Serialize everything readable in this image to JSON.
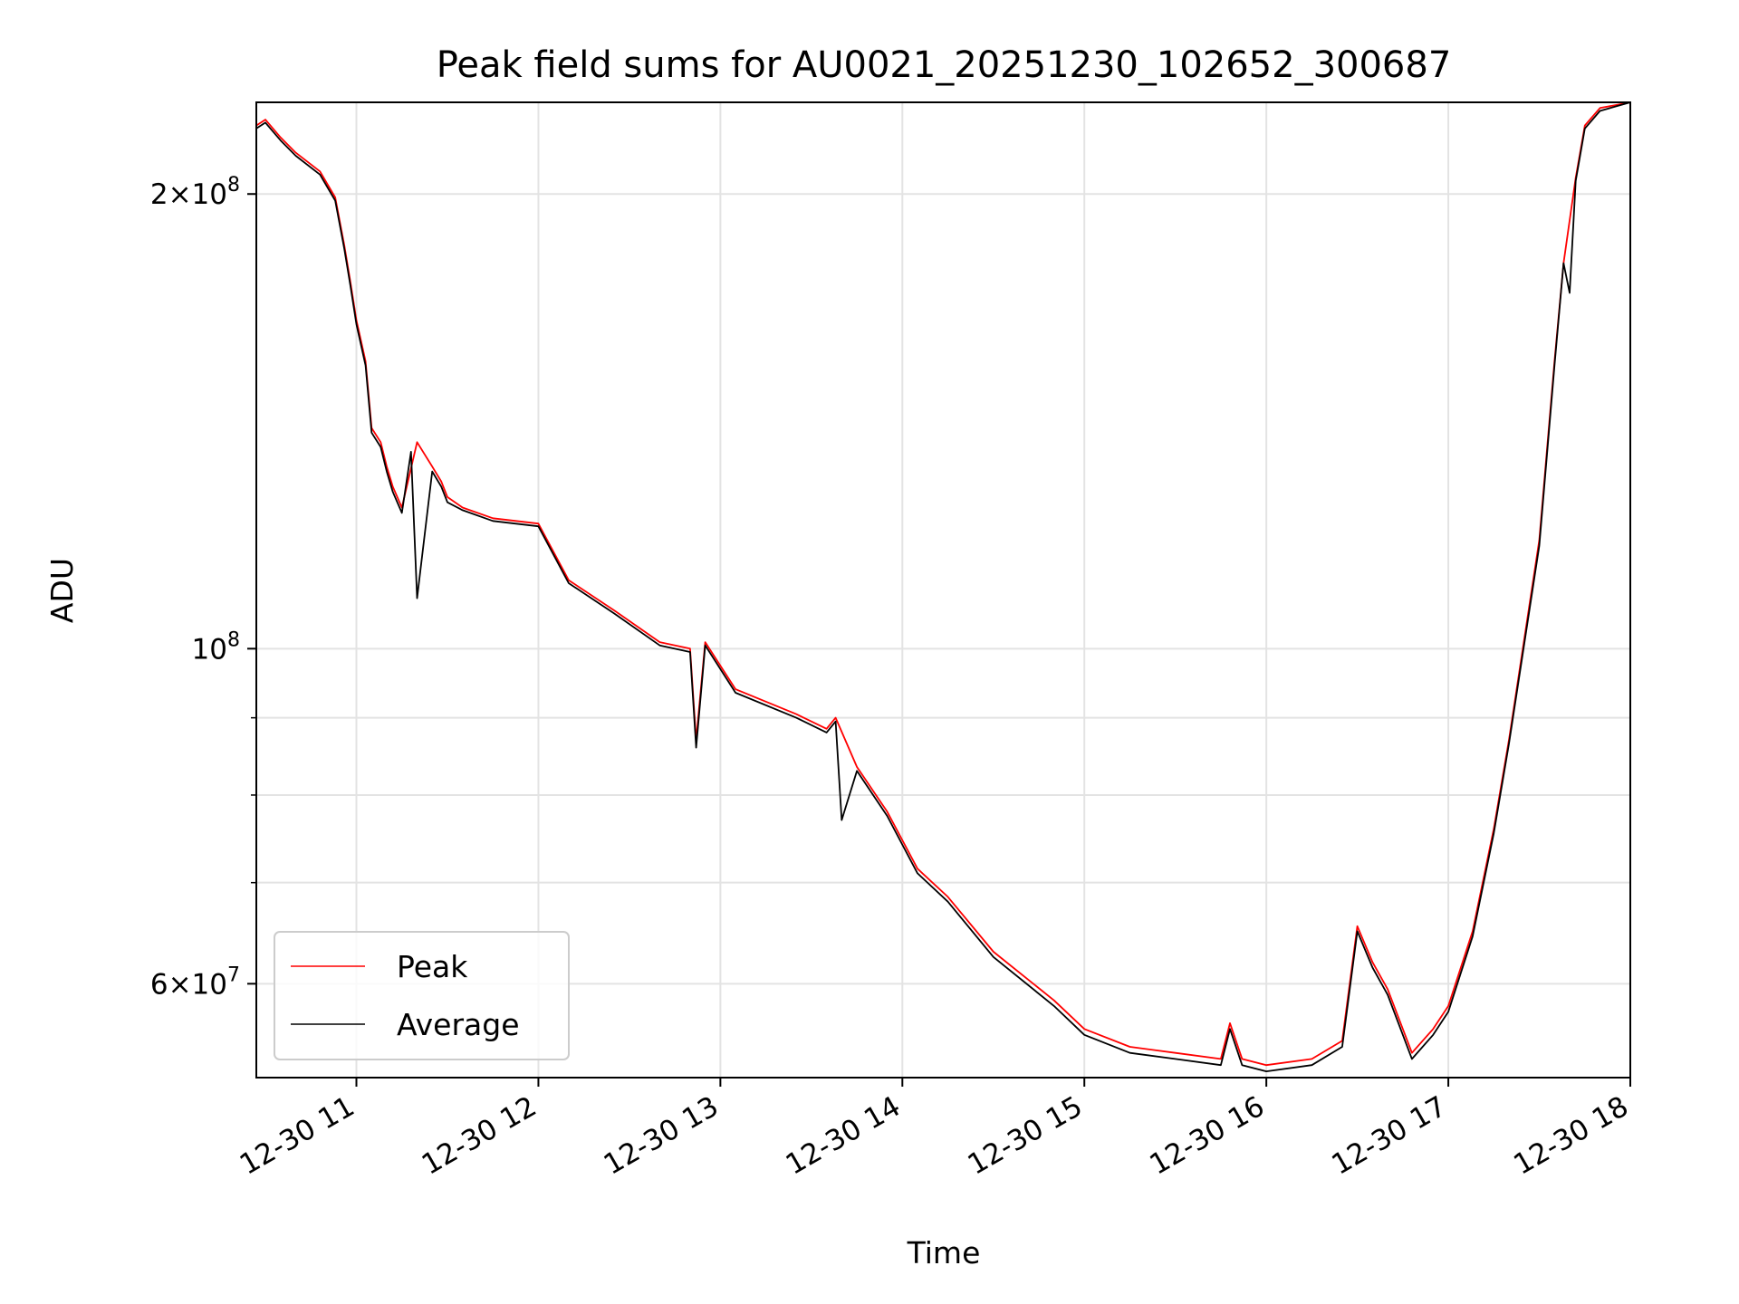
{
  "chart_data": {
    "type": "line",
    "title": "Peak field sums for AU0021_20251230_102652_300687",
    "xlabel": "Time",
    "ylabel": "ADU",
    "yscale": "log",
    "grid": true,
    "legend_position": "lower-left",
    "xlim": [
      "2025-12-30 10:27",
      "2025-12-30 18:00"
    ],
    "ylim": [
      52000000,
      230000000
    ],
    "x_ticks": [
      "12-30 11",
      "12-30 12",
      "12-30 13",
      "12-30 14",
      "12-30 15",
      "12-30 16",
      "12-30 17",
      "12-30 18"
    ],
    "y_ticks": [
      {
        "value": 200000000,
        "mantissa": "2",
        "exponent": "8"
      },
      {
        "value": 100000000,
        "mantissa": "",
        "exponent": "8"
      },
      {
        "value": 60000000,
        "mantissa": "6",
        "exponent": "7"
      }
    ],
    "y_minor_ticks": [
      70000000,
      80000000,
      90000000
    ],
    "series": [
      {
        "name": "Peak",
        "color": "#ff0000",
        "x": [
          "2025-12-30 10:27",
          "2025-12-30 10:30",
          "2025-12-30 10:35",
          "2025-12-30 10:40",
          "2025-12-30 10:48",
          "2025-12-30 10:53",
          "2025-12-30 10:56",
          "2025-12-30 10:58",
          "2025-12-30 11:00",
          "2025-12-30 11:03",
          "2025-12-30 11:05",
          "2025-12-30 11:08",
          "2025-12-30 11:10",
          "2025-12-30 11:12",
          "2025-12-30 11:15",
          "2025-12-30 11:20",
          "2025-12-30 11:25",
          "2025-12-30 11:28",
          "2025-12-30 11:30",
          "2025-12-30 11:35",
          "2025-12-30 11:45",
          "2025-12-30 12:00",
          "2025-12-30 12:10",
          "2025-12-30 12:25",
          "2025-12-30 12:40",
          "2025-12-30 12:50",
          "2025-12-30 12:52",
          "2025-12-30 12:55",
          "2025-12-30 13:05",
          "2025-12-30 13:25",
          "2025-12-30 13:35",
          "2025-12-30 13:38",
          "2025-12-30 13:45",
          "2025-12-30 13:55",
          "2025-12-30 14:05",
          "2025-12-30 14:15",
          "2025-12-30 14:30",
          "2025-12-30 14:50",
          "2025-12-30 15:00",
          "2025-12-30 15:15",
          "2025-12-30 15:30",
          "2025-12-30 15:45",
          "2025-12-30 15:48",
          "2025-12-30 15:52",
          "2025-12-30 16:00",
          "2025-12-30 16:15",
          "2025-12-30 16:25",
          "2025-12-30 16:30",
          "2025-12-30 16:35",
          "2025-12-30 16:40",
          "2025-12-30 16:48",
          "2025-12-30 16:55",
          "2025-12-30 17:00",
          "2025-12-30 17:08",
          "2025-12-30 17:15",
          "2025-12-30 17:20",
          "2025-12-30 17:30",
          "2025-12-30 17:35",
          "2025-12-30 17:38",
          "2025-12-30 17:42",
          "2025-12-30 17:45",
          "2025-12-30 17:50",
          "2025-12-30 18:00"
        ],
        "values": [
          222000000,
          224000000,
          218000000,
          213000000,
          207000000,
          199000000,
          185000000,
          175000000,
          165000000,
          155000000,
          140000000,
          137000000,
          132000000,
          128000000,
          124000000,
          137000000,
          132000000,
          129000000,
          126000000,
          124000000,
          122000000,
          121000000,
          111000000,
          106000000,
          101000000,
          100000000,
          87000000,
          101000000,
          94000000,
          90500000,
          88500000,
          90000000,
          83500000,
          78000000,
          71500000,
          68500000,
          63000000,
          58500000,
          56000000,
          54500000,
          54000000,
          53500000,
          56500000,
          53500000,
          53000000,
          53500000,
          55000000,
          65500000,
          62000000,
          59500000,
          54000000,
          56000000,
          58000000,
          65000000,
          76000000,
          87000000,
          118000000,
          155000000,
          180000000,
          205000000,
          222000000,
          228000000,
          230000000
        ]
      },
      {
        "name": "Average",
        "color": "#000000",
        "x": [
          "2025-12-30 10:27",
          "2025-12-30 10:30",
          "2025-12-30 10:35",
          "2025-12-30 10:40",
          "2025-12-30 10:48",
          "2025-12-30 10:53",
          "2025-12-30 10:56",
          "2025-12-30 10:58",
          "2025-12-30 11:00",
          "2025-12-30 11:03",
          "2025-12-30 11:05",
          "2025-12-30 11:08",
          "2025-12-30 11:10",
          "2025-12-30 11:12",
          "2025-12-30 11:15",
          "2025-12-30 11:18",
          "2025-12-30 11:20",
          "2025-12-30 11:25",
          "2025-12-30 11:28",
          "2025-12-30 11:30",
          "2025-12-30 11:35",
          "2025-12-30 11:45",
          "2025-12-30 12:00",
          "2025-12-30 12:10",
          "2025-12-30 12:25",
          "2025-12-30 12:40",
          "2025-12-30 12:50",
          "2025-12-30 12:52",
          "2025-12-30 12:55",
          "2025-12-30 13:05",
          "2025-12-30 13:25",
          "2025-12-30 13:35",
          "2025-12-30 13:38",
          "2025-12-30 13:40",
          "2025-12-30 13:45",
          "2025-12-30 13:55",
          "2025-12-30 14:05",
          "2025-12-30 14:15",
          "2025-12-30 14:30",
          "2025-12-30 14:50",
          "2025-12-30 15:00",
          "2025-12-30 15:15",
          "2025-12-30 15:30",
          "2025-12-30 15:45",
          "2025-12-30 15:48",
          "2025-12-30 15:52",
          "2025-12-30 16:00",
          "2025-12-30 16:15",
          "2025-12-30 16:25",
          "2025-12-30 16:30",
          "2025-12-30 16:35",
          "2025-12-30 16:40",
          "2025-12-30 16:48",
          "2025-12-30 16:55",
          "2025-12-30 17:00",
          "2025-12-30 17:08",
          "2025-12-30 17:15",
          "2025-12-30 17:20",
          "2025-12-30 17:30",
          "2025-12-30 17:35",
          "2025-12-30 17:38",
          "2025-12-30 17:40",
          "2025-12-30 17:42",
          "2025-12-30 17:45",
          "2025-12-30 17:50",
          "2025-12-30 18:00"
        ],
        "values": [
          221000000,
          223000000,
          217000000,
          212000000,
          206000000,
          198000000,
          184000000,
          174000000,
          164000000,
          154000000,
          139000000,
          136000000,
          131000000,
          127000000,
          123000000,
          135000000,
          108000000,
          131000000,
          128000000,
          125000000,
          123500000,
          121500000,
          120500000,
          110500000,
          105500000,
          100500000,
          99500000,
          86000000,
          100500000,
          93500000,
          90000000,
          88000000,
          89500000,
          77000000,
          83000000,
          77500000,
          71000000,
          68000000,
          62500000,
          58000000,
          55500000,
          54000000,
          53500000,
          53000000,
          56000000,
          53000000,
          52500000,
          53000000,
          54500000,
          65000000,
          61500000,
          59000000,
          53500000,
          55500000,
          57500000,
          64500000,
          75500000,
          86500000,
          117000000,
          154000000,
          180000000,
          172000000,
          204000000,
          221000000,
          227000000,
          230000000
        ]
      }
    ]
  }
}
